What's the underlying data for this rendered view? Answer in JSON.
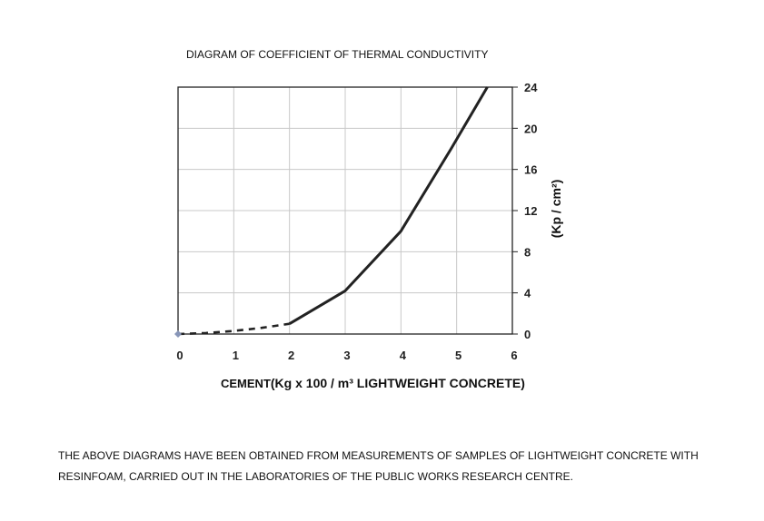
{
  "chart_data": {
    "type": "line",
    "title": "DIAGRAM OF COEFFICIENT OF THERMAL CONDUCTIVITY",
    "xlabel_prefix": "CEMENT",
    "xlabel": "(Kg x 100 / m³ LIGHTWEIGHT CONCRETE)",
    "ylabel": "(Kp / cm²)",
    "x_ticks": [
      "0",
      "1",
      "2",
      "3",
      "4",
      "5",
      "6"
    ],
    "y_ticks": [
      "0",
      "4",
      "8",
      "12",
      "16",
      "20",
      "24"
    ],
    "xlim": [
      0,
      6
    ],
    "ylim": [
      0,
      24
    ],
    "grid": true,
    "y_axis_side": "right",
    "series": [
      {
        "style": "dashed",
        "color": "#222222",
        "points": [
          [
            0,
            0
          ],
          [
            0.5,
            0.1
          ],
          [
            1,
            0.3
          ],
          [
            1.5,
            0.6
          ],
          [
            2,
            1.0
          ]
        ]
      },
      {
        "style": "solid",
        "color": "#222222",
        "points": [
          [
            2,
            1.0
          ],
          [
            3,
            4.2
          ],
          [
            4,
            10
          ],
          [
            4.9,
            18
          ],
          [
            5.55,
            24
          ]
        ]
      }
    ],
    "origin_marker_color": "#8896b8"
  },
  "footnote": "THE ABOVE DIAGRAMS HAVE BEEN OBTAINED FROM MEASUREMENTS OF SAMPLES OF LIGHTWEIGHT CONCRETE WITH RESINFOAM, CARRIED OUT IN THE LABORATORIES OF THE PUBLIC WORKS RESEARCH CENTRE."
}
